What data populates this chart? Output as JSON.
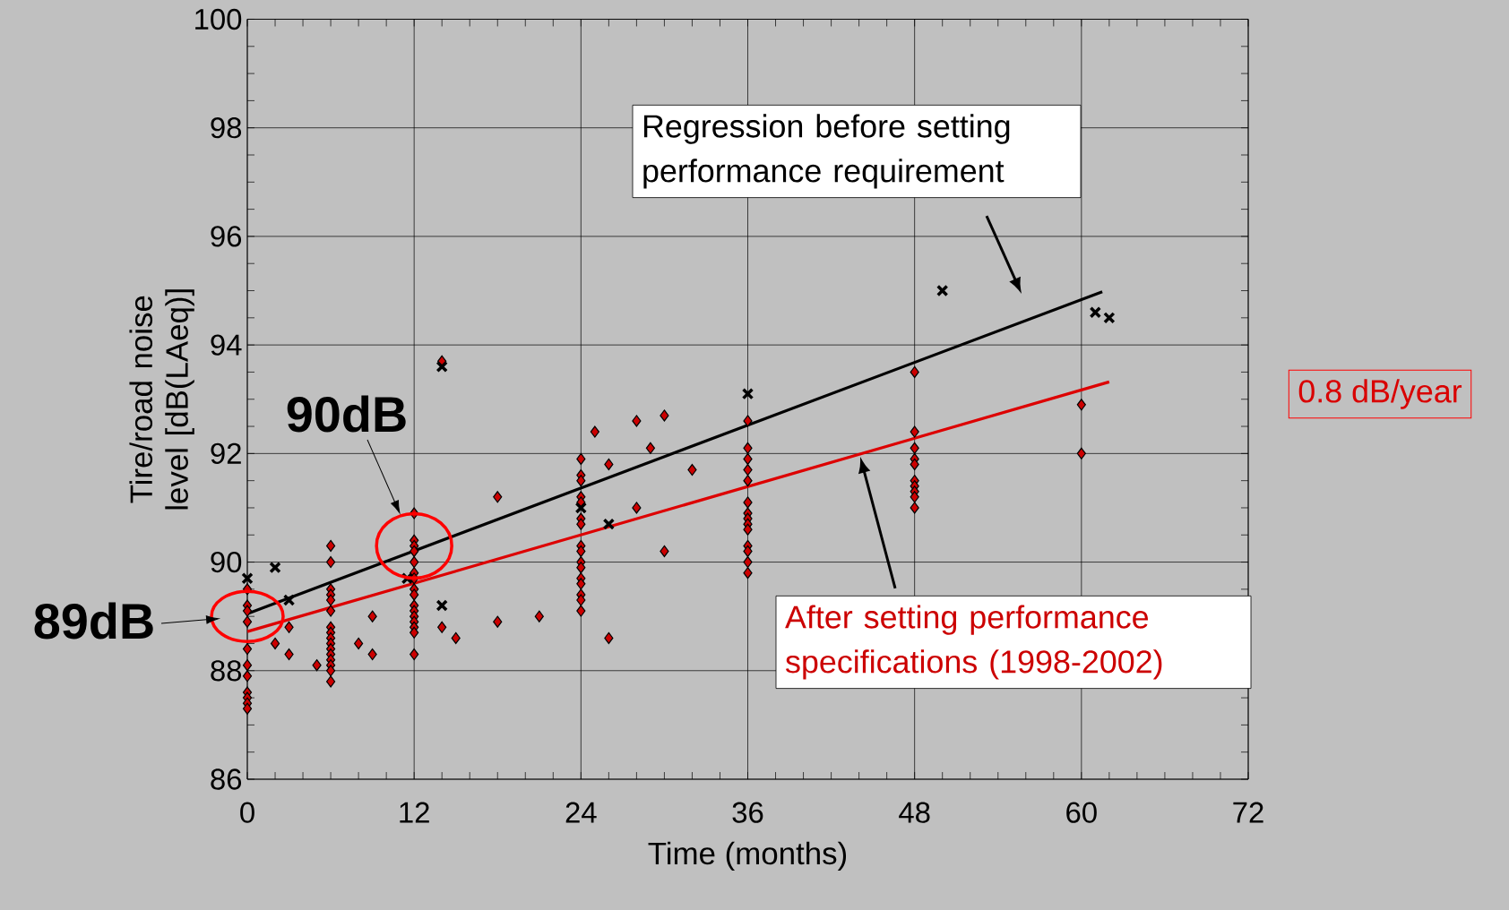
{
  "chart_data": {
    "type": "scatter",
    "xlabel": "Time (months)",
    "ylabel": "Tire/road noise level [dB(LAeq)]",
    "xlim": [
      0,
      72
    ],
    "xticks": [
      0,
      12,
      24,
      36,
      48,
      60,
      72
    ],
    "ylim": [
      86,
      100
    ],
    "yticks": [
      86,
      88,
      90,
      92,
      94,
      96,
      98,
      100
    ],
    "grid": true,
    "series": [
      {
        "marker": "diamond",
        "color": "#cc0000",
        "x": [
          0,
          0,
          0,
          0,
          0,
          0,
          0,
          0,
          0,
          0,
          0,
          2,
          3,
          3,
          5,
          6,
          6,
          6,
          6,
          6,
          6,
          6,
          6,
          6,
          6,
          6,
          6,
          6,
          6,
          6,
          6,
          8,
          9,
          9,
          12,
          12,
          12,
          12,
          12,
          12,
          12,
          12,
          12,
          12,
          12,
          12,
          12,
          12,
          12,
          12,
          14,
          14,
          15,
          18,
          18,
          21,
          24,
          24,
          24,
          24,
          24,
          24,
          24,
          24,
          24,
          24,
          24,
          24,
          24,
          24,
          24,
          24,
          25,
          26,
          26,
          28,
          28,
          29,
          30,
          30,
          32,
          36,
          36,
          36,
          36,
          36,
          36,
          36,
          36,
          36,
          36,
          36,
          36,
          36,
          36,
          48,
          48,
          48,
          48,
          48,
          48,
          48,
          48,
          48,
          48,
          60,
          60
        ],
        "values": [
          89.5,
          89.2,
          89.1,
          88.9,
          88.4,
          88.1,
          87.9,
          87.6,
          87.5,
          87.4,
          87.3,
          88.5,
          88.8,
          88.3,
          88.1,
          90.3,
          90.0,
          89.5,
          89.4,
          89.3,
          89.1,
          88.8,
          88.7,
          88.6,
          88.5,
          88.4,
          88.3,
          88.2,
          88.1,
          88.0,
          87.8,
          88.5,
          89.0,
          88.3,
          90.9,
          90.4,
          90.3,
          90.2,
          90.0,
          89.8,
          89.7,
          89.5,
          89.4,
          89.2,
          89.1,
          89.0,
          88.9,
          88.8,
          88.7,
          88.3,
          93.7,
          88.8,
          88.6,
          91.2,
          88.9,
          89.0,
          91.9,
          91.6,
          91.5,
          91.2,
          91.1,
          90.8,
          90.7,
          90.3,
          90.2,
          90.0,
          89.9,
          89.7,
          89.6,
          89.4,
          89.3,
          89.1,
          92.4,
          91.8,
          88.6,
          92.6,
          91.0,
          92.1,
          92.7,
          90.2,
          91.7,
          92.6,
          92.1,
          91.9,
          91.7,
          91.5,
          91.1,
          90.9,
          90.8,
          90.7,
          90.6,
          90.3,
          90.2,
          90.0,
          89.8,
          93.5,
          92.4,
          92.1,
          91.9,
          91.8,
          91.5,
          91.4,
          91.3,
          91.2,
          91.0,
          92.9,
          92.0
        ]
      },
      {
        "marker": "cross",
        "color": "#000000",
        "x": [
          0,
          2,
          3,
          11.5,
          14,
          14,
          24,
          26,
          36,
          50,
          61,
          62
        ],
        "values": [
          89.7,
          89.9,
          89.3,
          89.7,
          89.2,
          93.6,
          91.0,
          90.7,
          93.1,
          95.0,
          94.6,
          94.5
        ]
      },
      {
        "type": "line",
        "marker": "none",
        "line_style": "solid",
        "color": "#000000",
        "x": [
          0,
          61.5
        ],
        "values": [
          89.05,
          94.98
        ]
      },
      {
        "type": "line",
        "marker": "none",
        "line_style": "solid",
        "color": "#dd0000",
        "x": [
          0,
          62
        ],
        "values": [
          88.72,
          93.32
        ]
      }
    ],
    "annotations": [
      {
        "text": "90dB",
        "x": 12,
        "y": 90.3
      },
      {
        "text": "89dB",
        "x": 0,
        "y": 89.0
      },
      "Regression before setting performance requirement",
      "After setting performance specifications (1998-2002)",
      "0.8 dB/year"
    ]
  }
}
